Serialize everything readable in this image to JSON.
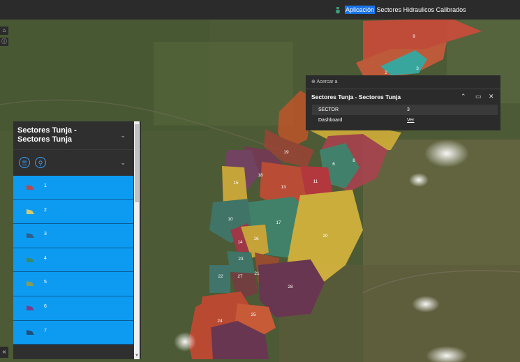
{
  "header": {
    "title_highlight": "Aplicación",
    "title_rest": "Sectores Hidraulicos Calibrados"
  },
  "toolbar_left": {
    "home_icon": "home-icon",
    "info_icon": "info-icon",
    "expand_icon": "double-chevron-left-icon"
  },
  "map": {
    "sector_labels": [
      "9",
      "8",
      "19",
      "18",
      "13",
      "11",
      "15",
      "10",
      "17",
      "20",
      "14",
      "16",
      "23",
      "21",
      "22",
      "27",
      "28",
      "25",
      "24",
      "2",
      "3",
      "6"
    ]
  },
  "layer_panel": {
    "title": "Sectores Tunja - Sectores Tunja",
    "title_line1": "Sectores Tunja -",
    "title_line2": "Sectores Tunja",
    "legend": [
      {
        "label": "1",
        "color": "#b7484f"
      },
      {
        "label": "2",
        "color": "#d9c86a"
      },
      {
        "label": "3",
        "color": "#2c5f8a"
      },
      {
        "label": "4",
        "color": "#3b8a66"
      },
      {
        "label": "5",
        "color": "#8a9a55"
      },
      {
        "label": "6",
        "color": "#7a3d8a"
      },
      {
        "label": "7",
        "color": "#214f7a"
      }
    ]
  },
  "popup": {
    "zoom_label": "Acercar a",
    "title": "Sectores Tunja - Sectores Tunja",
    "fields": [
      {
        "key": "SECTOR",
        "value": "3"
      },
      {
        "key": "Dashboard",
        "value": "Ver"
      }
    ]
  }
}
